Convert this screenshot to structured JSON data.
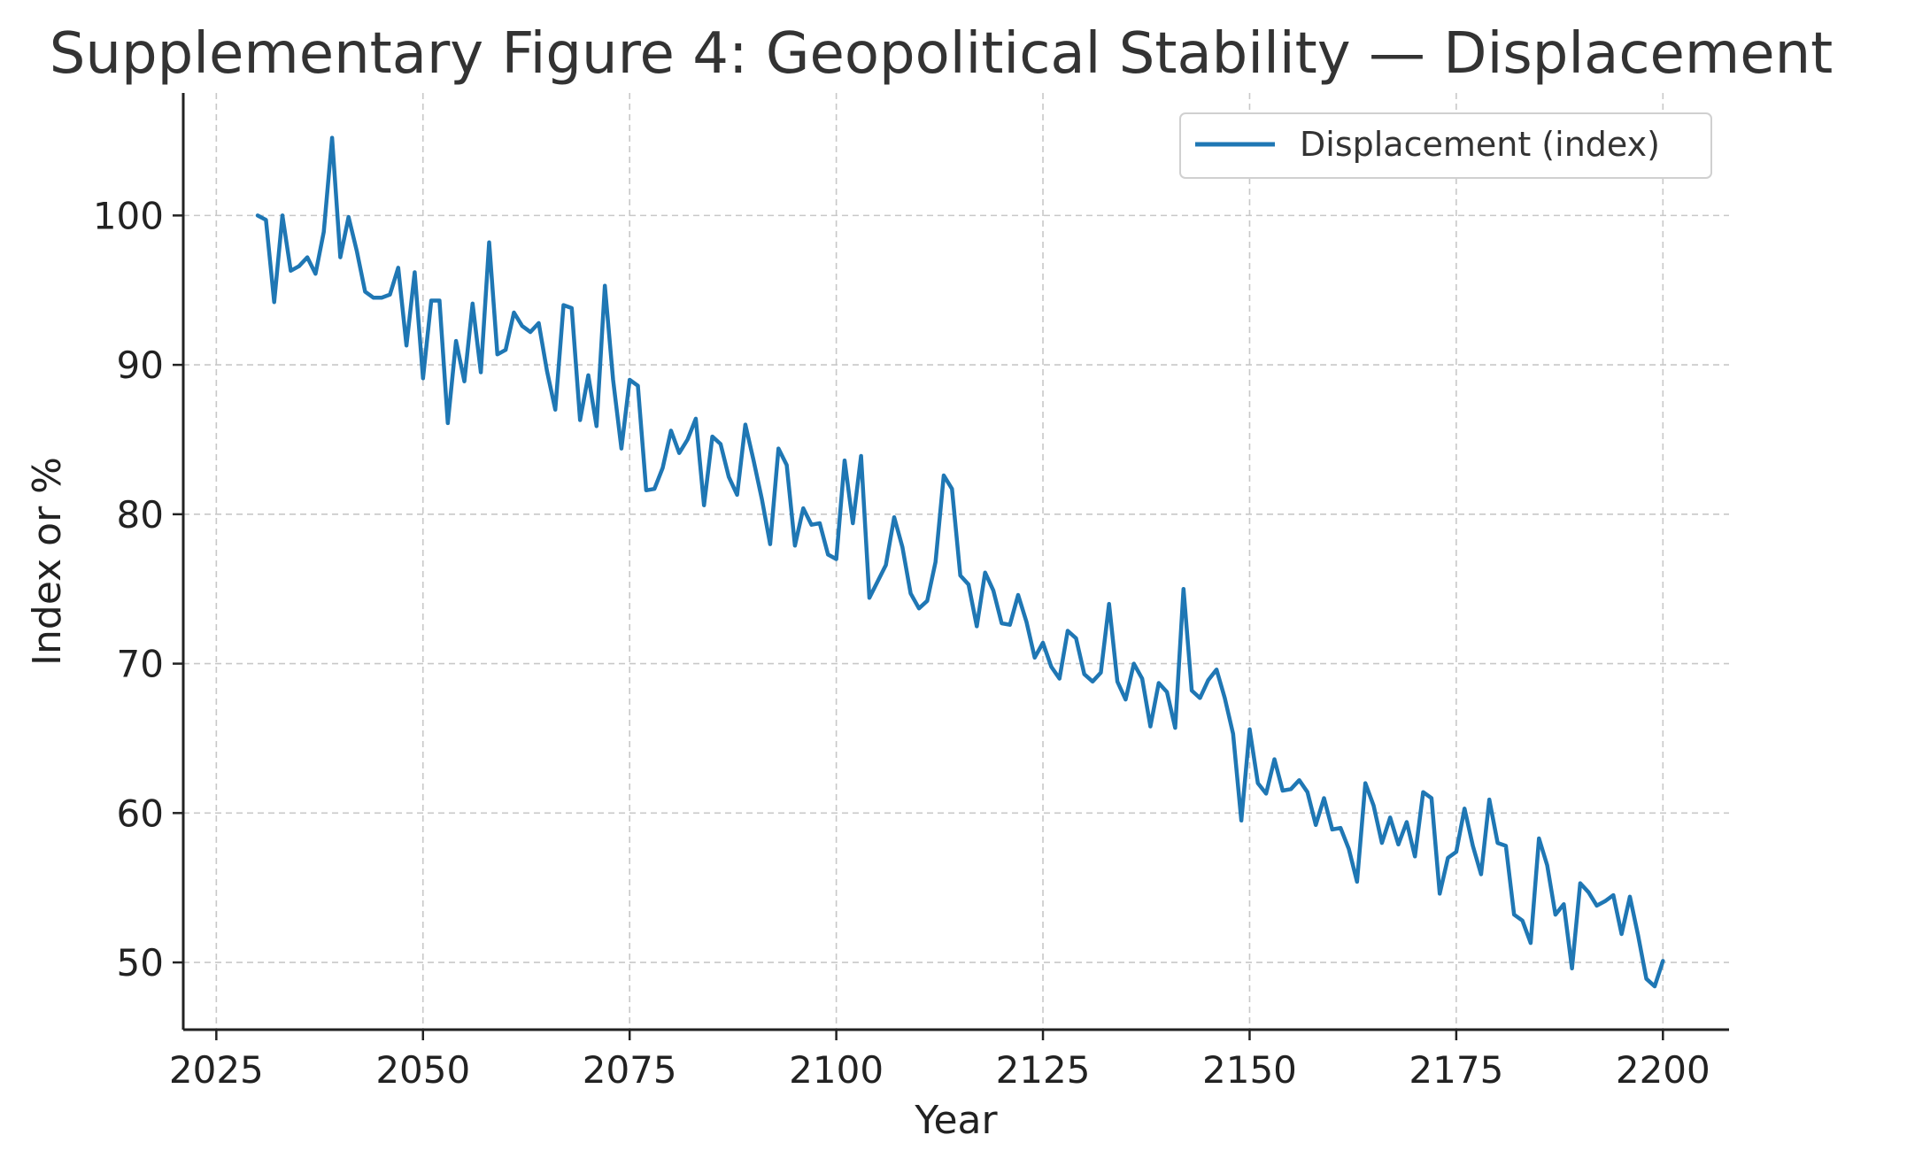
{
  "chart_data": {
    "type": "line",
    "title": "Supplementary Figure 4: Geopolitical Stability — Displacement",
    "xlabel": "Year",
    "ylabel": "Index or %",
    "xlim": [
      2021,
      2208
    ],
    "ylim": [
      45.5,
      108.2
    ],
    "x_ticks": [
      2025,
      2050,
      2075,
      2100,
      2125,
      2150,
      2175,
      2200
    ],
    "y_ticks": [
      50,
      60,
      70,
      80,
      90,
      100
    ],
    "grid": true,
    "legend_position": "top-right",
    "series": [
      {
        "name": "Displacement (index)",
        "color": "#1f77b4",
        "x": [
          2030,
          2031,
          2032,
          2033,
          2034,
          2035,
          2036,
          2037,
          2038,
          2039,
          2040,
          2041,
          2042,
          2043,
          2044,
          2045,
          2046,
          2047,
          2048,
          2049,
          2050,
          2051,
          2052,
          2053,
          2054,
          2055,
          2056,
          2057,
          2058,
          2059,
          2060,
          2061,
          2062,
          2063,
          2064,
          2065,
          2066,
          2067,
          2068,
          2069,
          2070,
          2071,
          2072,
          2073,
          2074,
          2075,
          2076,
          2077,
          2078,
          2079,
          2080,
          2081,
          2082,
          2083,
          2084,
          2085,
          2086,
          2087,
          2088,
          2089,
          2090,
          2091,
          2092,
          2093,
          2094,
          2095,
          2096,
          2097,
          2098,
          2099,
          2100,
          2101,
          2102,
          2103,
          2104,
          2105,
          2106,
          2107,
          2108,
          2109,
          2110,
          2111,
          2112,
          2113,
          2114,
          2115,
          2116,
          2117,
          2118,
          2119,
          2120,
          2121,
          2122,
          2123,
          2124,
          2125,
          2126,
          2127,
          2128,
          2129,
          2130,
          2131,
          2132,
          2133,
          2134,
          2135,
          2136,
          2137,
          2138,
          2139,
          2140,
          2141,
          2142,
          2143,
          2144,
          2145,
          2146,
          2147,
          2148,
          2149,
          2150,
          2151,
          2152,
          2153,
          2154,
          2155,
          2156,
          2157,
          2158,
          2159,
          2160,
          2161,
          2162,
          2163,
          2164,
          2165,
          2166,
          2167,
          2168,
          2169,
          2170,
          2171,
          2172,
          2173,
          2174,
          2175,
          2176,
          2177,
          2178,
          2179,
          2180,
          2181,
          2182,
          2183,
          2184,
          2185,
          2186,
          2187,
          2188,
          2189,
          2190,
          2191,
          2192,
          2193,
          2194,
          2195,
          2196,
          2197,
          2198,
          2199,
          2200
        ],
        "values": [
          100.0,
          99.7,
          94.2,
          100.0,
          96.3,
          96.6,
          97.2,
          96.1,
          98.9,
          105.2,
          97.2,
          99.9,
          97.6,
          94.9,
          94.5,
          94.5,
          94.7,
          96.5,
          91.3,
          96.2,
          89.1,
          94.3,
          94.3,
          86.1,
          91.6,
          88.9,
          94.1,
          89.5,
          98.2,
          90.7,
          91.0,
          93.5,
          92.6,
          92.2,
          92.8,
          89.6,
          87.0,
          94.0,
          93.8,
          86.3,
          89.3,
          85.9,
          95.3,
          89.0,
          84.4,
          89.0,
          88.6,
          81.6,
          81.7,
          83.1,
          85.6,
          84.1,
          85.0,
          86.4,
          80.6,
          85.2,
          84.7,
          82.5,
          81.3,
          86.0,
          83.6,
          81.0,
          78.0,
          84.4,
          83.3,
          77.9,
          80.4,
          79.3,
          79.4,
          77.3,
          77.0,
          83.6,
          79.4,
          83.9,
          74.4,
          75.5,
          76.6,
          79.8,
          77.8,
          74.7,
          73.7,
          74.2,
          76.8,
          82.6,
          81.7,
          75.9,
          75.3,
          72.5,
          76.1,
          74.9,
          72.7,
          72.6,
          74.6,
          72.8,
          70.4,
          71.4,
          69.8,
          69.0,
          72.2,
          71.7,
          69.3,
          68.8,
          69.4,
          74.0,
          68.8,
          67.6,
          70.0,
          69.0,
          65.8,
          68.7,
          68.1,
          65.7,
          75.0,
          68.2,
          67.7,
          68.9,
          69.6,
          67.7,
          65.3,
          59.5,
          65.6,
          62.0,
          61.3,
          63.6,
          61.5,
          61.6,
          62.2,
          61.4,
          59.2,
          61.0,
          58.9,
          59.0,
          57.6,
          55.4,
          62.0,
          60.5,
          58.0,
          59.7,
          57.9,
          59.4,
          57.1,
          61.4,
          61.0,
          54.6,
          57.0,
          57.4,
          60.3,
          57.8,
          55.9,
          60.9,
          58.0,
          57.8,
          53.2,
          52.8,
          51.3,
          58.3,
          56.5,
          53.2,
          53.9,
          49.6,
          55.3,
          54.7,
          53.8,
          54.1,
          54.5,
          51.9,
          54.4,
          51.8,
          48.9,
          48.4,
          50.1
        ]
      }
    ]
  }
}
